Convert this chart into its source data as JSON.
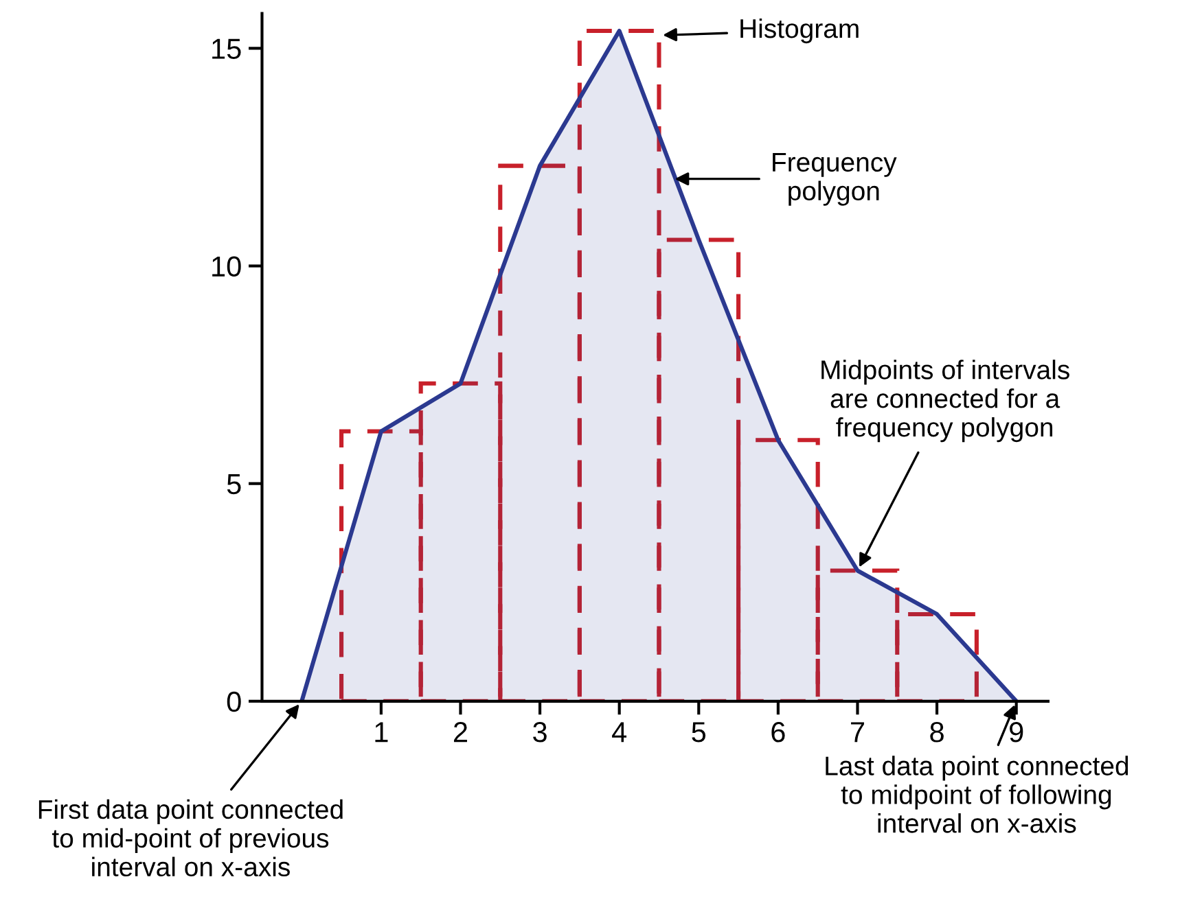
{
  "chart_data": {
    "type": "histogram",
    "bins": [
      0.5,
      1.5,
      2.5,
      3.5,
      4.5,
      5.5,
      6.5,
      7.5,
      8.5
    ],
    "series": [
      {
        "color": "#c8202a",
        "line_style": "dashed",
        "values": [
          6.2,
          7.3,
          12.3,
          15.4,
          10.6,
          6.0,
          3.0,
          2.0
        ]
      },
      {
        "type": "area",
        "color": "#2b3990",
        "x": [
          0,
          1,
          2,
          3,
          4,
          5,
          6,
          7,
          8,
          9
        ],
        "values": [
          0,
          6.2,
          7.3,
          12.3,
          15.4,
          10.6,
          6.0,
          3.0,
          2.0,
          0
        ]
      }
    ],
    "xlim": [
      -0.5,
      9.4
    ],
    "xticks": [
      1,
      2,
      3,
      4,
      5,
      6,
      7,
      8,
      9
    ],
    "ylim": [
      0,
      15.8
    ],
    "yticks": [
      0,
      5,
      10,
      15
    ],
    "grid": false,
    "annotations": [
      {
        "text": "Histogram",
        "x": 4.5,
        "y": 15.3
      },
      {
        "text": "Frequency\npolygon",
        "x": 4.65,
        "y": 12.0
      },
      {
        "text": "Midpoints of intervals\nare connected for a\nfrequency polygon",
        "x": 7,
        "y": 3.0
      },
      {
        "text": "First data point connected\nto mid-point of previous\ninterval on x-axis",
        "x": 0,
        "y": 0
      },
      {
        "text": "Last data point connected\nto midpoint of following\ninterval on x-axis",
        "x": 9,
        "y": 0
      }
    ]
  }
}
